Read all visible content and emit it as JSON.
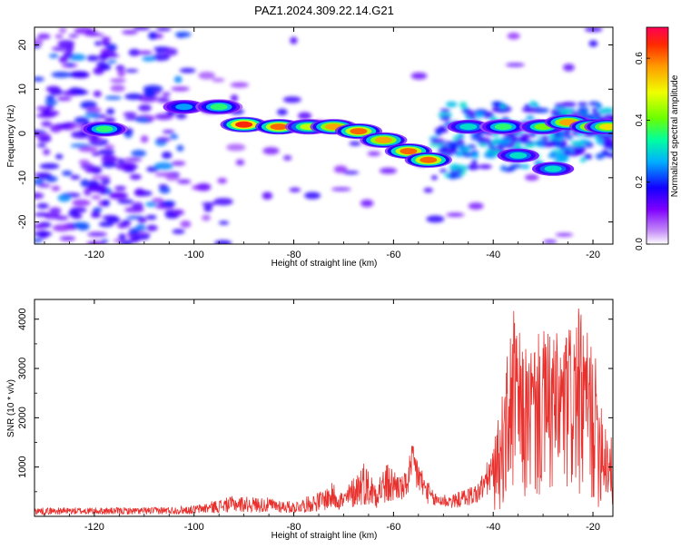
{
  "figure_title": "PAZ1.2024.309.22.14.G21",
  "chart_data": [
    {
      "type": "heatmap",
      "xlabel": "Height of straight line (km)",
      "ylabel": "Frequency (Hz)",
      "xlim": [
        -132,
        -16
      ],
      "ylim": [
        -25,
        24
      ],
      "xticks": [
        -120,
        -100,
        -80,
        -60,
        -40,
        -20
      ],
      "yticks": [
        -20,
        -10,
        0,
        10,
        20
      ],
      "colorbar": {
        "label": "Normalized spectral amplitude",
        "range": [
          0,
          0.7
        ],
        "ticks": [
          "0.0",
          "0.2",
          "0.4",
          "0.6"
        ],
        "tick_values": [
          0.0,
          0.2,
          0.4,
          0.6
        ]
      },
      "ridge": [
        {
          "x": -118,
          "y": 1,
          "v": 0.35
        },
        {
          "x": -102,
          "y": 6,
          "v": 0.25
        },
        {
          "x": -95,
          "y": 6,
          "v": 0.35
        },
        {
          "x": -90,
          "y": 2,
          "v": 0.65
        },
        {
          "x": -83,
          "y": 1.5,
          "v": 0.6
        },
        {
          "x": -77,
          "y": 1.5,
          "v": 0.45
        },
        {
          "x": -72,
          "y": 1.5,
          "v": 0.55
        },
        {
          "x": -67,
          "y": 0.5,
          "v": 0.6
        },
        {
          "x": -62,
          "y": -1.5,
          "v": 0.55
        },
        {
          "x": -57,
          "y": -4,
          "v": 0.6
        },
        {
          "x": -53,
          "y": -6,
          "v": 0.6
        },
        {
          "x": -45,
          "y": 1.5,
          "v": 0.3
        },
        {
          "x": -38,
          "y": 1.5,
          "v": 0.35
        },
        {
          "x": -30,
          "y": 1.5,
          "v": 0.4
        },
        {
          "x": -25,
          "y": 2.5,
          "v": 0.55
        },
        {
          "x": -20,
          "y": 1.5,
          "v": 0.55
        },
        {
          "x": -17,
          "y": 1.5,
          "v": 0.5
        },
        {
          "x": -35,
          "y": -5,
          "v": 0.3
        },
        {
          "x": -28,
          "y": -8,
          "v": 0.3
        }
      ]
    },
    {
      "type": "line",
      "xlabel": "Height of straight line (km)",
      "ylabel": "SNR (10 * v/v)",
      "xlim": [
        -132,
        -16
      ],
      "ylim": [
        0,
        4400
      ],
      "xticks": [
        -120,
        -100,
        -80,
        -60,
        -40,
        -20
      ],
      "yticks": [
        1000,
        2000,
        3000,
        4000
      ],
      "series": [
        {
          "color": "#e8302d",
          "envelope": [
            {
              "x": -132,
              "y": 180
            },
            {
              "x": -110,
              "y": 180
            },
            {
              "x": -100,
              "y": 220
            },
            {
              "x": -92,
              "y": 420
            },
            {
              "x": -85,
              "y": 380
            },
            {
              "x": -80,
              "y": 300
            },
            {
              "x": -75,
              "y": 500
            },
            {
              "x": -72,
              "y": 700
            },
            {
              "x": -70,
              "y": 500
            },
            {
              "x": -66,
              "y": 1150
            },
            {
              "x": -64,
              "y": 800
            },
            {
              "x": -61,
              "y": 1100
            },
            {
              "x": -58,
              "y": 800
            },
            {
              "x": -56,
              "y": 1550
            },
            {
              "x": -54,
              "y": 900
            },
            {
              "x": -52,
              "y": 500
            },
            {
              "x": -48,
              "y": 450
            },
            {
              "x": -43,
              "y": 700
            },
            {
              "x": -40,
              "y": 1400
            },
            {
              "x": -38,
              "y": 2600
            },
            {
              "x": -36,
              "y": 4300
            },
            {
              "x": -34,
              "y": 3400
            },
            {
              "x": -30,
              "y": 3800
            },
            {
              "x": -26,
              "y": 3700
            },
            {
              "x": -23,
              "y": 4250
            },
            {
              "x": -20,
              "y": 3500
            },
            {
              "x": -17,
              "y": 1900
            },
            {
              "x": -16,
              "y": 1500
            }
          ]
        }
      ]
    }
  ]
}
